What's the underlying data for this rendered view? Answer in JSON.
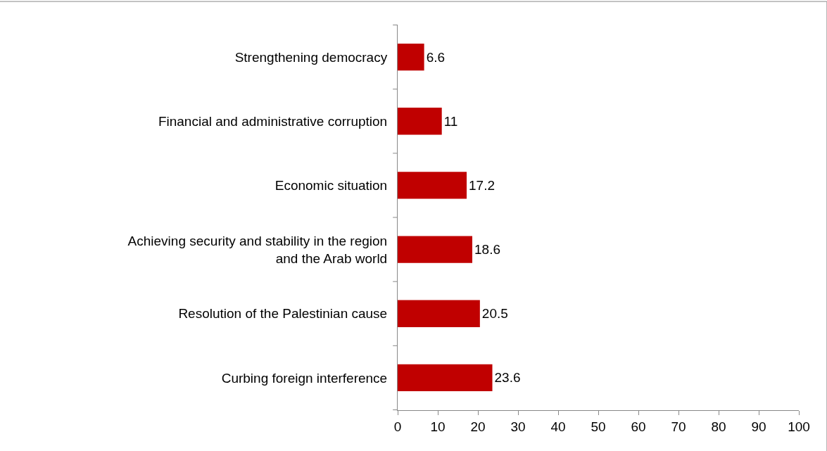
{
  "chart_data": {
    "type": "bar",
    "orientation": "horizontal",
    "categories": [
      "Strengthening democracy",
      "Financial and administrative corruption",
      "Economic situation",
      "Achieving security and stability in the region and the Arab world",
      "Resolution of the Palestinian cause",
      "Curbing foreign interference"
    ],
    "values": [
      6.6,
      11,
      17.2,
      18.6,
      20.5,
      23.6
    ],
    "color": "#c00000",
    "xlim": [
      0,
      100
    ],
    "xticks": [
      0,
      10,
      20,
      30,
      40,
      50,
      60,
      70,
      80,
      90,
      100
    ],
    "data_labels": true,
    "legend": false
  }
}
